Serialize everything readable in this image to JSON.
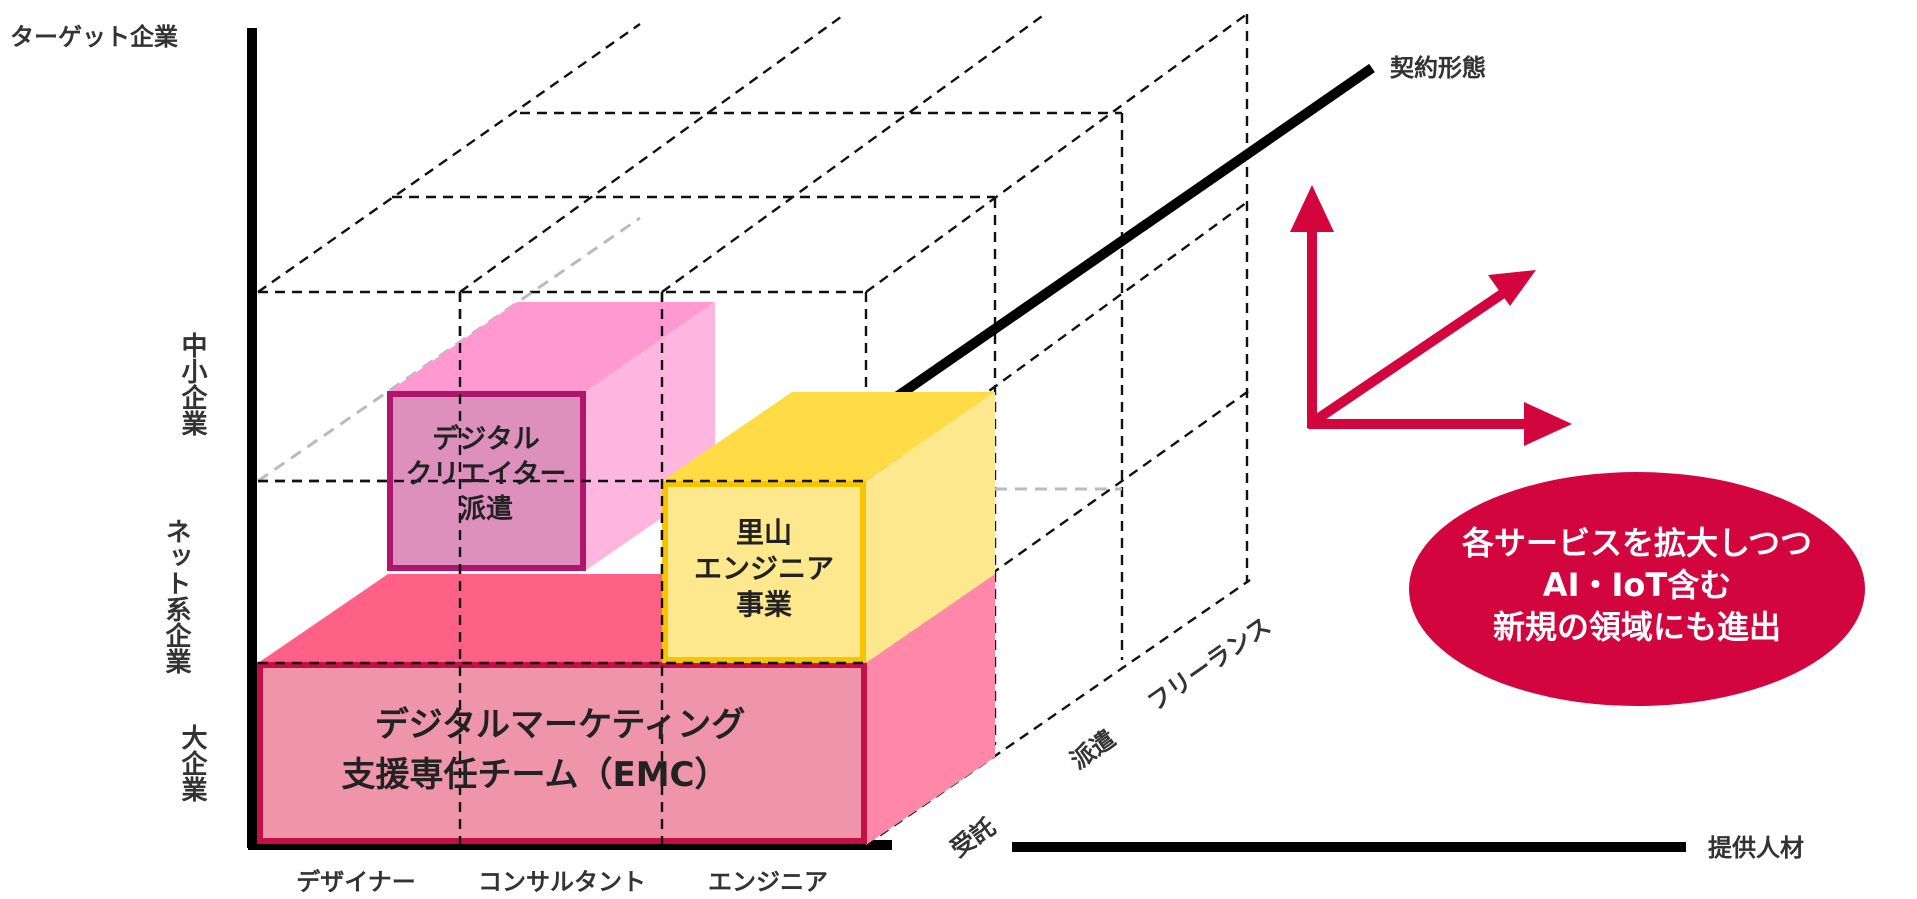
{
  "axes": {
    "y_title": "ターゲット企業",
    "z_title": "契約形態",
    "x_title": "提供人材",
    "y_categories": [
      "大企業",
      "ネット系企業",
      "中小企業"
    ],
    "x_categories": [
      "デザイナー",
      "コンサルタント",
      "エンジニア"
    ],
    "z_categories": [
      "受託",
      "派遣",
      "フリーランス"
    ]
  },
  "boxes": {
    "emc": {
      "lines": [
        "デジタルマーケティング",
        "支援専任チーム（EMC）"
      ],
      "color": "#e8376b"
    },
    "creator": {
      "lines": [
        "デジタル",
        "クリエイター",
        "派遣"
      ],
      "color": "#b0156d"
    },
    "satoyama": {
      "lines": [
        "里山",
        "エンジニア",
        "事業"
      ],
      "color": "#f6c400"
    }
  },
  "callout": {
    "lines": [
      "各サービスを拡大しつつ",
      "AI・IoT含む",
      "新規の領域にも進出"
    ],
    "color": "#d2053f"
  },
  "arrows": {
    "color": "#d2053f",
    "directions": [
      "up",
      "diagonal",
      "right"
    ]
  }
}
